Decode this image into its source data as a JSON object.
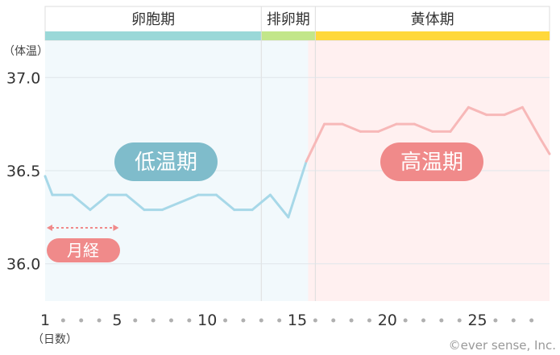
{
  "chart_data": {
    "type": "line",
    "title": "",
    "ylabel": "（体温）",
    "xlabel": "（日数）",
    "xlim": [
      1,
      29
    ],
    "ylim": [
      35.8,
      37.2
    ],
    "yticks": [
      "37.0",
      "36.5",
      "36.0"
    ],
    "ytick_values": [
      37.0,
      36.5,
      36.0
    ],
    "xticks": [
      "1",
      "5",
      "10",
      "15",
      "20",
      "25"
    ],
    "xtick_values": [
      1,
      5,
      10,
      15,
      20,
      25
    ],
    "grid": true,
    "phases": [
      {
        "name": "卵胞期",
        "start": 1,
        "end": 13,
        "color": "#9ad8d8"
      },
      {
        "name": "排卵期",
        "start": 13,
        "end": 16,
        "color": "#c2e68a"
      },
      {
        "name": "黄体期",
        "start": 16,
        "end": 29,
        "color": "#ffd83b"
      }
    ],
    "low_zone": {
      "start": 1,
      "end": 15.6,
      "color": "#f2f9fc"
    },
    "high_zone": {
      "start": 15.6,
      "end": 29,
      "color": "#fff0f0"
    },
    "series": [
      {
        "name": "",
        "color_low": "#a7d8e8",
        "color_high": "#f7b8b8",
        "x": [
          1,
          1.4,
          2.5,
          3.5,
          4.5,
          5.5,
          6.5,
          7.5,
          8.5,
          9.5,
          10.5,
          11.5,
          12.5,
          13.5,
          14.5,
          15.5,
          16.5,
          17.5,
          18.5,
          19.5,
          20.5,
          21.5,
          22.5,
          23.5,
          24.5,
          25.5,
          26.5,
          27.5,
          28.5,
          29
        ],
        "y": [
          36.47,
          36.37,
          36.37,
          36.29,
          36.37,
          36.37,
          36.29,
          36.29,
          36.33,
          36.37,
          36.37,
          36.29,
          36.29,
          36.37,
          36.25,
          36.55,
          36.75,
          36.75,
          36.71,
          36.71,
          36.75,
          36.75,
          36.71,
          36.71,
          36.84,
          36.8,
          36.8,
          36.84,
          36.67,
          36.59
        ]
      }
    ],
    "labels": {
      "low": "低温期",
      "high": "高温期",
      "period": "月経"
    },
    "period_range": [
      1,
      5
    ],
    "copyright": "©ever sense, Inc."
  }
}
